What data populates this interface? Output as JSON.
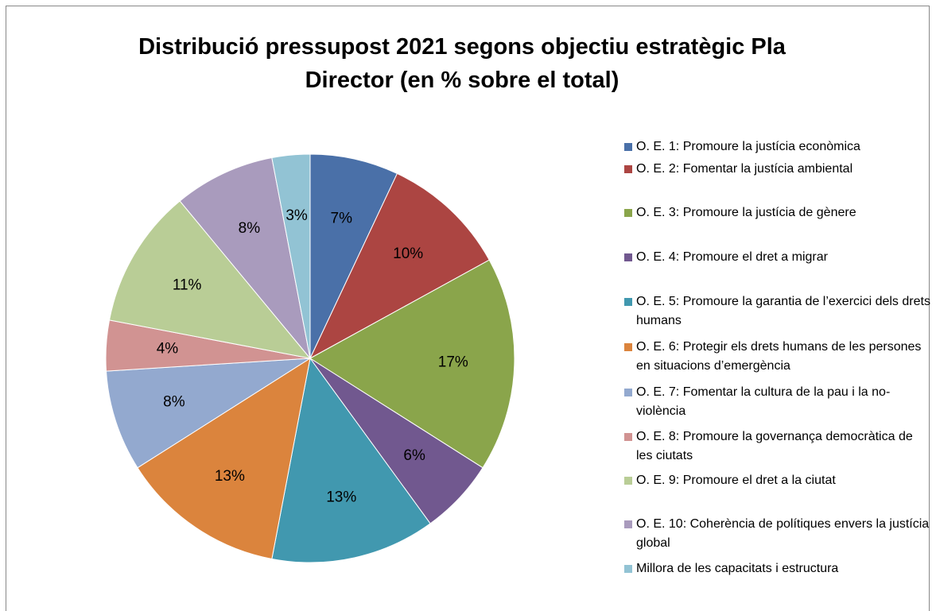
{
  "chart_data": {
    "type": "pie",
    "title": "Distribució pressupost 2021 segons objectiu estratègic Pla Director (en % sobre el total)",
    "categories": [
      "O. E. 1: Promoure la justícia econòmica",
      "O. E. 2: Fomentar la justícia ambiental",
      "O. E. 3: Promoure la justícia de gènere",
      "O. E. 4: Promoure el dret a migrar",
      "O. E. 5: Promoure la garantia de l’exercici dels drets humans",
      "O. E. 6: Protegir els drets humans de les persones en situacions d’emergència",
      "O. E. 7: Fomentar la cultura de la pau i la no-violència",
      "O. E. 8: Promoure la governança democràtica de les ciutats",
      "O. E. 9: Promoure el dret a la ciutat",
      "O. E. 10: Coherència de polítiques envers la justícia global",
      "Millora de les capacitats i estructura"
    ],
    "values": [
      7,
      10,
      17,
      6,
      13,
      13,
      8,
      4,
      11,
      8,
      3
    ],
    "value_labels": [
      "7%",
      "10%",
      "17%",
      "6%",
      "13%",
      "13%",
      "8%",
      "4%",
      "11%",
      "8%",
      "3%"
    ],
    "colors": [
      "#4a70a8",
      "#ac4542",
      "#8aa54b",
      "#71588f",
      "#4198af",
      "#db843d",
      "#93a9cf",
      "#d19392",
      "#b9cd96",
      "#a99bbd",
      "#92c3d4"
    ],
    "legend": "right"
  }
}
